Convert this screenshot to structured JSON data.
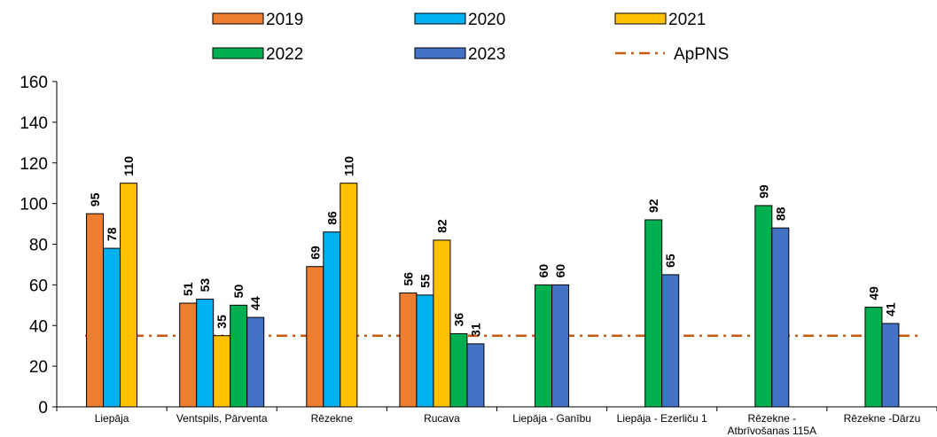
{
  "chart_data": {
    "type": "bar",
    "categories": [
      [
        "Liepāja"
      ],
      [
        "Ventspils, Pārventa"
      ],
      [
        "Rēzekne"
      ],
      [
        "Rucava"
      ],
      [
        "Liepāja - Ganību"
      ],
      [
        "Liepāja - Ezerliču 1"
      ],
      [
        "Rēzekne -",
        "Atbrīvošanas 115A"
      ],
      [
        "Rēzekne -Dārzu"
      ]
    ],
    "series": [
      {
        "name": "2019",
        "color": "#ED7D31",
        "values": [
          95,
          51,
          69,
          56,
          null,
          null,
          null,
          null
        ]
      },
      {
        "name": "2020",
        "color": "#00B0F0",
        "values": [
          78,
          53,
          86,
          55,
          null,
          null,
          null,
          null
        ]
      },
      {
        "name": "2021",
        "color": "#FFC000",
        "values": [
          110,
          35,
          110,
          82,
          null,
          null,
          null,
          null
        ]
      },
      {
        "name": "2022",
        "color": "#00B050",
        "values": [
          null,
          50,
          null,
          36,
          60,
          92,
          99,
          49
        ]
      },
      {
        "name": "2023",
        "color": "#4472C4",
        "values": [
          null,
          44,
          null,
          31,
          60,
          65,
          88,
          41
        ]
      }
    ],
    "reference_line": {
      "name": "ApPNS",
      "value": 35,
      "color": "#C55A11",
      "style": "dash-dot"
    },
    "ylim": [
      0,
      160
    ],
    "yticks": [
      0,
      20,
      40,
      60,
      80,
      100,
      120,
      140,
      160
    ],
    "legend_position": "top",
    "grid": false,
    "title": "",
    "xlabel": "",
    "ylabel": ""
  }
}
